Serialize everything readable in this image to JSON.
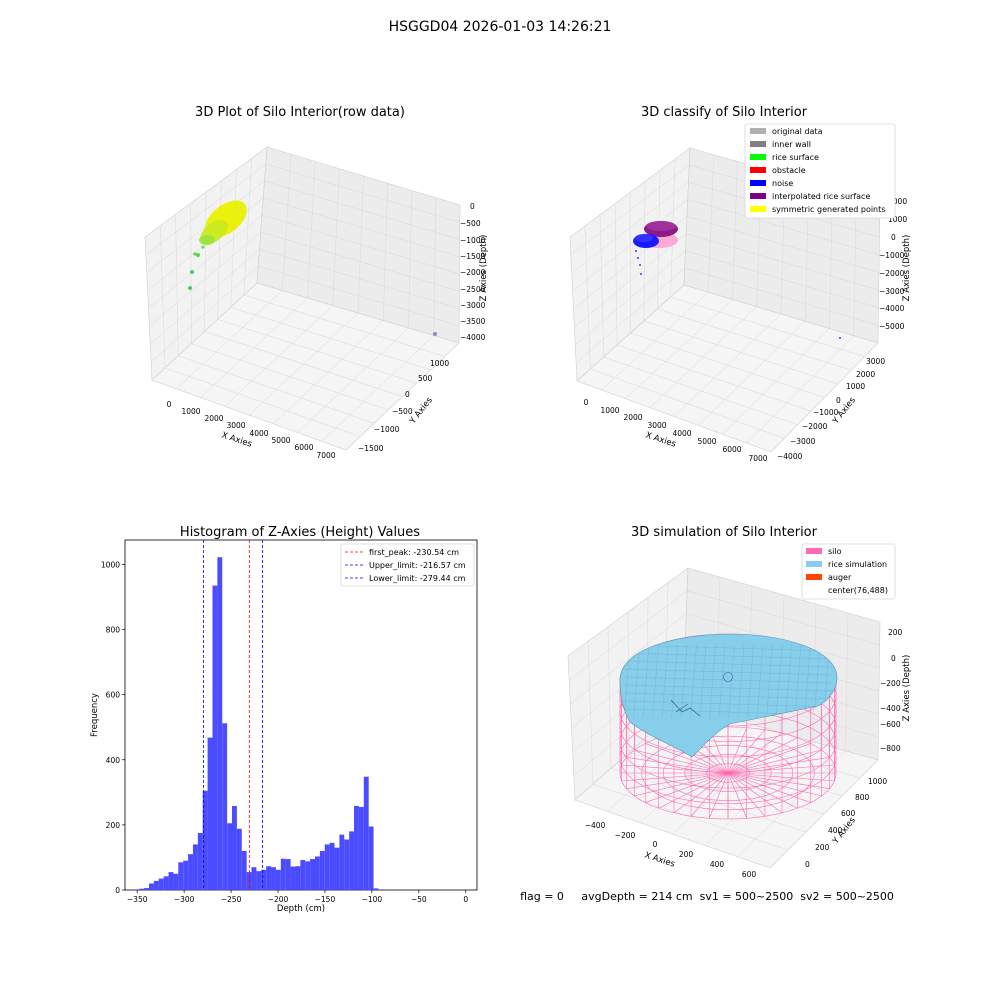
{
  "suptitle": "HSGGD04 2026-01-03 14:26:21",
  "colors": {
    "original": "#b0b0b0",
    "inner_wall": "#808080",
    "rice_surface": "#00ff00",
    "obstacle": "#ff0000",
    "noise": "#0000ff",
    "interpolated": "#800080",
    "symmetric": "#ffff00",
    "silo": "#ff69b4",
    "rice_sim": "#87ceeb",
    "auger": "#ff4500",
    "hist_bar": "#4b4bff",
    "first_peak_line": "#ff0000",
    "limit_line": "#0000ff",
    "pane": "#f2f2f2",
    "grid": "#d8d8d8"
  },
  "panels": {
    "raw": {
      "title": "3D Plot of Silo Interior(row data)",
      "xlabel": "X Axies",
      "ylabel": "Y Axies",
      "zlabel": "Z Axies (Depth)",
      "xticks": [
        "0",
        "1000",
        "2000",
        "3000",
        "4000",
        "5000",
        "6000",
        "7000"
      ],
      "yticks": [
        "1000",
        "500",
        "0",
        "−500",
        "−1000",
        "−1500"
      ],
      "zticks": [
        "0",
        "−500",
        "−1000",
        "−1500",
        "−2000",
        "−2500",
        "−3000",
        "−3500",
        "−4000"
      ]
    },
    "classify": {
      "title": "3D classify of Silo Interior",
      "xlabel": "X Axies",
      "ylabel": "Y Axies",
      "zlabel": "Z Axies (Depth)",
      "xticks": [
        "0",
        "1000",
        "2000",
        "3000",
        "4000",
        "5000",
        "6000",
        "7000"
      ],
      "yticks": [
        "3000",
        "2000",
        "1000",
        "0",
        "−1000",
        "−2000",
        "−3000",
        "−4000"
      ],
      "zticks": [
        "2000",
        "1000",
        "0",
        "−1000",
        "−2000",
        "−3000",
        "−4000",
        "−5000"
      ],
      "legend": [
        "original data",
        "inner wall",
        "rice surface",
        "obstacle",
        "noise",
        "interpolated rice surface",
        "symmetric generated points"
      ]
    },
    "simulation": {
      "title": "3D simulation of Silo Interior",
      "xlabel": "X Axies",
      "ylabel": "Y Axies",
      "zlabel": "Z Axies (Depth)",
      "xticks": [
        "−400",
        "−200",
        "0",
        "200",
        "400",
        "600"
      ],
      "yticks": [
        "1000",
        "800",
        "600",
        "400",
        "200",
        "0"
      ],
      "zticks": [
        "200",
        "0",
        "−200",
        "−400",
        "−600",
        "−800"
      ],
      "legend": [
        "silo",
        "rice simulation",
        "auger",
        "center(76,488)"
      ]
    }
  },
  "status_line": "flag = 0     avgDepth = 214 cm  sv1 = 500~2500  sv2 = 500~2500",
  "chart_data": {
    "type": "bar",
    "title": "Histogram of Z-Axies (Height) Values",
    "xlabel": "Depth (cm)",
    "ylabel": "Frequency",
    "xlim": [
      -363,
      12
    ],
    "ylim": [
      0,
      1075
    ],
    "xticks": [
      -350,
      -300,
      -250,
      -200,
      -150,
      -100,
      -50,
      0
    ],
    "xtick_labels": [
      "−350",
      "−300",
      "−250",
      "−200",
      "−150",
      "−100",
      "−50",
      "0"
    ],
    "yticks": [
      0,
      200,
      400,
      600,
      800,
      1000
    ],
    "bins": {
      "start": -353,
      "width": 5.2,
      "counts": [
        2,
        4,
        6,
        20,
        28,
        35,
        42,
        55,
        50,
        85,
        90,
        110,
        140,
        175,
        305,
        468,
        935,
        1022,
        512,
        205,
        258,
        188,
        120,
        55,
        70,
        58,
        62,
        73,
        70,
        62,
        96,
        95,
        72,
        73,
        92,
        88,
        95,
        103,
        120,
        140,
        145,
        130,
        170,
        155,
        180,
        258,
        255,
        348,
        195,
        5
      ]
    },
    "lines": [
      {
        "label": "first_peak: -230.54 cm",
        "x": -230.54,
        "style": "red"
      },
      {
        "label": "Upper_limit: -216.57 cm",
        "x": -216.57,
        "style": "blue"
      },
      {
        "label": "Lower_limit: -279.44 cm",
        "x": -279.44,
        "style": "blue"
      }
    ],
    "grid": false,
    "legend_position": "top-right"
  }
}
